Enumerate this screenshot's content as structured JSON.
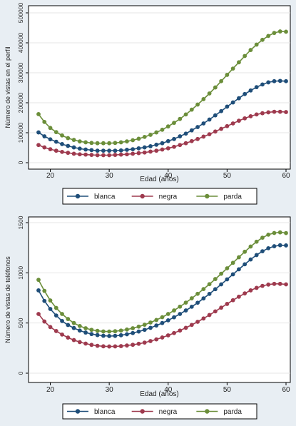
{
  "chart_data": [
    {
      "type": "line",
      "xlabel": "Edad (años)",
      "ylabel": "Número de vistas en el perfil",
      "xlim": [
        18,
        60
      ],
      "ylim": [
        0,
        500000
      ],
      "xticks": [
        "20",
        "30",
        "40",
        "50",
        "60"
      ],
      "yticks": [
        "0",
        "100000",
        "200000",
        "300000",
        "400000",
        "500000"
      ],
      "legend_position": "bottom",
      "grid": true,
      "x": [
        18,
        19,
        20,
        21,
        22,
        23,
        24,
        25,
        26,
        27,
        28,
        29,
        30,
        31,
        32,
        33,
        34,
        35,
        36,
        37,
        38,
        39,
        40,
        41,
        42,
        43,
        44,
        45,
        46,
        47,
        48,
        49,
        50,
        51,
        52,
        53,
        54,
        55,
        56,
        57,
        58,
        59,
        60
      ],
      "series": [
        {
          "name": "blanca",
          "color": "#1f4e79",
          "values": [
            101000,
            88000,
            78000,
            70000,
            62000,
            56000,
            51000,
            47000,
            44000,
            42000,
            40000,
            40000,
            40000,
            40000,
            41000,
            43000,
            45000,
            48000,
            51000,
            55000,
            60000,
            65000,
            72000,
            79000,
            88000,
            97000,
            108000,
            119000,
            131000,
            144000,
            158000,
            172000,
            187000,
            201000,
            215000,
            229000,
            241000,
            252000,
            261000,
            268000,
            272000,
            273000,
            272000
          ]
        },
        {
          "name": "negra",
          "color": "#9e3a4e",
          "values": [
            59000,
            51000,
            45000,
            40000,
            36000,
            33000,
            30000,
            28000,
            27000,
            26000,
            25000,
            25000,
            25000,
            26000,
            27000,
            28000,
            30000,
            32000,
            34000,
            37000,
            40000,
            44000,
            48000,
            53000,
            59000,
            65000,
            72000,
            79000,
            87000,
            95000,
            104000,
            113000,
            122000,
            131000,
            140000,
            148000,
            155000,
            161000,
            165000,
            168000,
            170000,
            170000,
            169000
          ]
        },
        {
          "name": "parda",
          "color": "#6b8e3a",
          "values": [
            162000,
            136000,
            116000,
            102000,
            91000,
            82000,
            76000,
            71000,
            68000,
            66000,
            65000,
            65000,
            65000,
            66000,
            68000,
            71000,
            75000,
            80000,
            86000,
            93000,
            101000,
            110000,
            121000,
            133000,
            146000,
            161000,
            177000,
            194000,
            212000,
            231000,
            251000,
            272000,
            293000,
            314000,
            335000,
            356000,
            376000,
            394000,
            410000,
            423000,
            433000,
            438000,
            437000
          ]
        }
      ]
    },
    {
      "type": "line",
      "xlabel": "Edad (años)",
      "ylabel": "Número de vistas de teléfonos",
      "xlim": [
        18,
        60
      ],
      "ylim": [
        0,
        1500
      ],
      "xticks": [
        "20",
        "30",
        "40",
        "50",
        "60"
      ],
      "yticks": [
        "0",
        "500",
        "1000",
        "1500"
      ],
      "legend_position": "bottom",
      "grid": true,
      "x": [
        18,
        19,
        20,
        21,
        22,
        23,
        24,
        25,
        26,
        27,
        28,
        29,
        30,
        31,
        32,
        33,
        34,
        35,
        36,
        37,
        38,
        39,
        40,
        41,
        42,
        43,
        44,
        45,
        46,
        47,
        48,
        49,
        50,
        51,
        52,
        53,
        54,
        55,
        56,
        57,
        58,
        59,
        60
      ],
      "series": [
        {
          "name": "blanca",
          "color": "#1f4e79",
          "values": [
            825,
            720,
            640,
            575,
            520,
            480,
            450,
            425,
            405,
            390,
            380,
            373,
            370,
            372,
            378,
            388,
            400,
            415,
            432,
            452,
            475,
            500,
            527,
            557,
            590,
            625,
            662,
            702,
            745,
            790,
            837,
            885,
            935,
            985,
            1035,
            1085,
            1133,
            1177,
            1215,
            1245,
            1265,
            1275,
            1273
          ]
        },
        {
          "name": "negra",
          "color": "#9e3a4e",
          "values": [
            590,
            515,
            460,
            420,
            385,
            355,
            330,
            310,
            295,
            282,
            273,
            268,
            266,
            267,
            270,
            276,
            283,
            293,
            305,
            320,
            337,
            356,
            377,
            400,
            425,
            452,
            481,
            512,
            545,
            580,
            616,
            653,
            690,
            727,
            762,
            795,
            825,
            850,
            870,
            883,
            890,
            890,
            885
          ]
        },
        {
          "name": "parda",
          "color": "#6b8e3a",
          "values": [
            930,
            820,
            725,
            650,
            590,
            540,
            500,
            470,
            448,
            432,
            422,
            416,
            415,
            418,
            425,
            435,
            448,
            464,
            483,
            505,
            530,
            558,
            590,
            625,
            663,
            703,
            746,
            791,
            838,
            887,
            938,
            991,
            1045,
            1100,
            1155,
            1210,
            1262,
            1310,
            1350,
            1380,
            1397,
            1403,
            1396
          ]
        }
      ]
    }
  ]
}
